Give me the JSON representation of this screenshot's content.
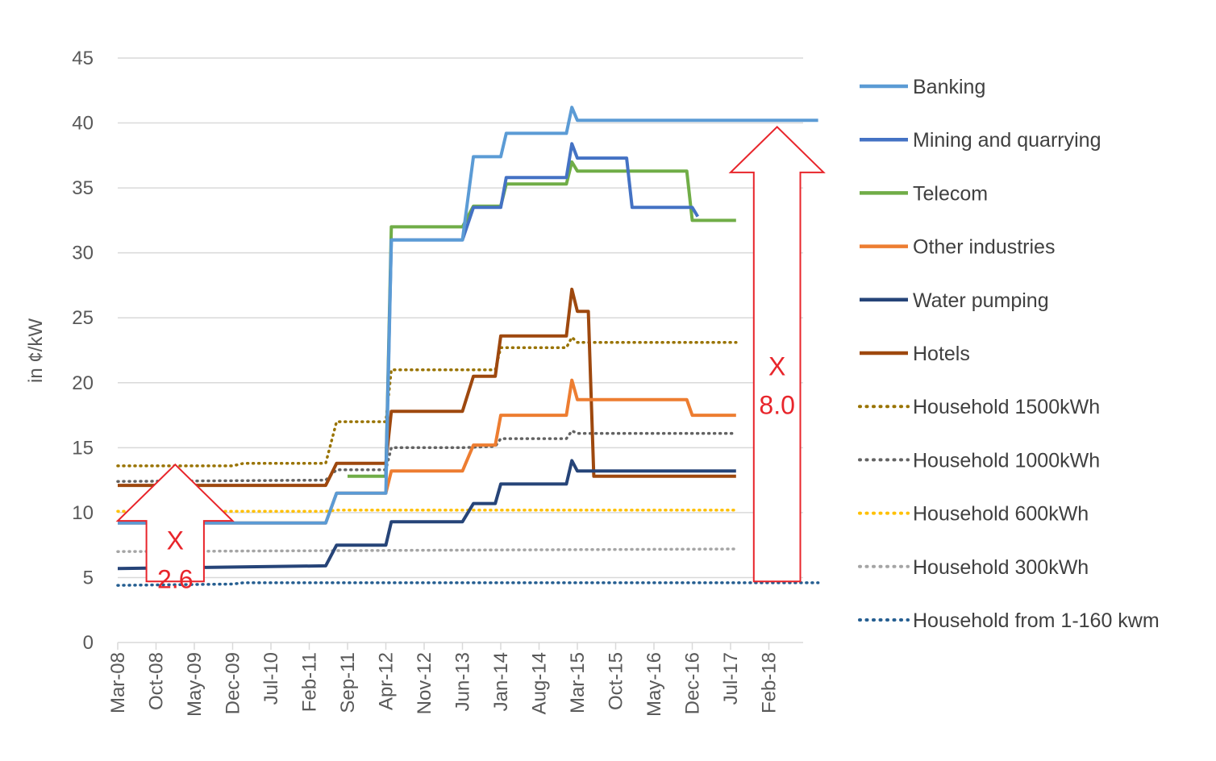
{
  "chart_data": {
    "type": "line",
    "ylabel": "in ¢/kW",
    "ylim": [
      0,
      45
    ],
    "yticks": [
      0,
      5,
      10,
      15,
      20,
      25,
      30,
      35,
      40,
      45
    ],
    "xtick_labels": [
      "Mar-08",
      "Oct-08",
      "May-09",
      "Dec-09",
      "Jul-10",
      "Feb-11",
      "Sep-11",
      "Apr-12",
      "Nov-12",
      "Jun-13",
      "Jan-14",
      "Aug-14",
      "Mar-15",
      "Oct-15",
      "May-16",
      "Dec-16",
      "Jul-17",
      "Feb-18"
    ],
    "legend_position": "right",
    "grid": "horizontal",
    "series": [
      {
        "name": "Banking",
        "color": "#5b9bd5",
        "style": "solid",
        "points": [
          [
            "Mar-08",
            9.2
          ],
          [
            "May-11",
            9.2
          ],
          [
            "Jul-11",
            11.5
          ],
          [
            "Apr-12",
            11.5
          ],
          [
            "May-12",
            31
          ],
          [
            "Jun-13",
            31
          ],
          [
            "Aug-13",
            37.4
          ],
          [
            "Jan-14",
            37.4
          ],
          [
            "Feb-14",
            39.2
          ],
          [
            "Jan-15",
            39.2
          ],
          [
            "Feb-15",
            41.2
          ],
          [
            "Mar-15",
            40.2
          ],
          [
            "Nov-18",
            40.2
          ]
        ]
      },
      {
        "name": "Mining and quarrying",
        "color": "#4472c4",
        "style": "solid",
        "points": [
          [
            "Apr-12",
            12.7
          ],
          [
            "May-12",
            31
          ],
          [
            "Jun-13",
            31
          ],
          [
            "Aug-13",
            33.5
          ],
          [
            "Jan-14",
            33.5
          ],
          [
            "Feb-14",
            35.8
          ],
          [
            "Jan-15",
            35.8
          ],
          [
            "Feb-15",
            38.4
          ],
          [
            "Mar-15",
            37.3
          ],
          [
            "Dec-15",
            37.3
          ],
          [
            "Jan-16",
            33.5
          ],
          [
            "Dec-16",
            33.5
          ],
          [
            "Jan-17",
            32.8
          ]
        ]
      },
      {
        "name": "Telecom",
        "color": "#70ad47",
        "style": "solid",
        "points": [
          [
            "Sep-11",
            12.8
          ],
          [
            "Apr-12",
            12.8
          ],
          [
            "May-12",
            32
          ],
          [
            "Jun-13",
            32
          ],
          [
            "Aug-13",
            33.6
          ],
          [
            "Jan-14",
            33.6
          ],
          [
            "Feb-14",
            35.3
          ],
          [
            "Jan-15",
            35.3
          ],
          [
            "Feb-15",
            37
          ],
          [
            "Mar-15",
            36.3
          ],
          [
            "Nov-16",
            36.3
          ],
          [
            "Dec-16",
            32.5
          ],
          [
            "Aug-17",
            32.5
          ]
        ]
      },
      {
        "name": "Other industries",
        "color": "#ed7d31",
        "style": "solid",
        "points": [
          [
            "Mar-08",
            9.2
          ],
          [
            "May-11",
            9.2
          ],
          [
            "Jul-11",
            11.5
          ],
          [
            "Apr-12",
            11.5
          ],
          [
            "May-12",
            13.2
          ],
          [
            "Jun-13",
            13.2
          ],
          [
            "Aug-13",
            15.2
          ],
          [
            "Dec-13",
            15.2
          ],
          [
            "Jan-14",
            17.5
          ],
          [
            "Jan-15",
            17.5
          ],
          [
            "Feb-15",
            20.2
          ],
          [
            "Mar-15",
            18.7
          ],
          [
            "Nov-16",
            18.7
          ],
          [
            "Dec-16",
            17.5
          ],
          [
            "Aug-17",
            17.5
          ]
        ]
      },
      {
        "name": "Water pumping",
        "color": "#264478",
        "style": "solid",
        "points": [
          [
            "Mar-08",
            5.7
          ],
          [
            "May-11",
            5.9
          ],
          [
            "Jul-11",
            7.5
          ],
          [
            "Apr-12",
            7.5
          ],
          [
            "May-12",
            9.3
          ],
          [
            "Jun-13",
            9.3
          ],
          [
            "Aug-13",
            10.7
          ],
          [
            "Dec-13",
            10.7
          ],
          [
            "Jan-14",
            12.2
          ],
          [
            "Jan-15",
            12.2
          ],
          [
            "Feb-15",
            14
          ],
          [
            "Mar-15",
            13.2
          ],
          [
            "Aug-17",
            13.2
          ]
        ]
      },
      {
        "name": "Hotels",
        "color": "#9e480e",
        "style": "solid",
        "points": [
          [
            "Mar-08",
            12.1
          ],
          [
            "May-11",
            12.1
          ],
          [
            "Jul-11",
            13.8
          ],
          [
            "Apr-12",
            13.8
          ],
          [
            "May-12",
            17.8
          ],
          [
            "Jun-13",
            17.8
          ],
          [
            "Aug-13",
            20.5
          ],
          [
            "Dec-13",
            20.5
          ],
          [
            "Jan-14",
            23.6
          ],
          [
            "Jan-15",
            23.6
          ],
          [
            "Feb-15",
            27.2
          ],
          [
            "Mar-15",
            25.5
          ],
          [
            "May-15",
            25.5
          ],
          [
            "Jun-15",
            12.8
          ],
          [
            "Aug-17",
            12.8
          ]
        ]
      },
      {
        "name": "Household 1500kWh",
        "color": "#997300",
        "style": "dotted",
        "points": [
          [
            "Mar-08",
            13.6
          ],
          [
            "Dec-09",
            13.6
          ],
          [
            "Feb-10",
            13.8
          ],
          [
            "May-11",
            13.8
          ],
          [
            "Jul-11",
            17
          ],
          [
            "Apr-12",
            17
          ],
          [
            "May-12",
            21
          ],
          [
            "Jun-13",
            21
          ],
          [
            "Aug-13",
            21
          ],
          [
            "Dec-13",
            21
          ],
          [
            "Jan-14",
            22.7
          ],
          [
            "Jan-15",
            22.7
          ],
          [
            "Feb-15",
            23.5
          ],
          [
            "Mar-15",
            23.1
          ],
          [
            "Aug-17",
            23.1
          ]
        ]
      },
      {
        "name": "Household 1000kWh",
        "color": "#636363",
        "style": "dotted",
        "points": [
          [
            "Mar-08",
            12.4
          ],
          [
            "May-11",
            12.5
          ],
          [
            "Jul-11",
            13.3
          ],
          [
            "Apr-12",
            13.3
          ],
          [
            "May-12",
            15
          ],
          [
            "Jun-13",
            15
          ],
          [
            "Dec-13",
            15.1
          ],
          [
            "Jan-14",
            15.7
          ],
          [
            "Jan-15",
            15.7
          ],
          [
            "Feb-15",
            16.3
          ],
          [
            "Mar-15",
            16.1
          ],
          [
            "Aug-17",
            16.1
          ]
        ]
      },
      {
        "name": "Household 600kWh",
        "color": "#ffc000",
        "style": "dotted",
        "points": [
          [
            "Mar-08",
            10.1
          ],
          [
            "May-11",
            10.1
          ],
          [
            "Jul-11",
            10.2
          ],
          [
            "Aug-17",
            10.2
          ]
        ]
      },
      {
        "name": "Household 300kWh",
        "color": "#a5a5a5",
        "style": "dotted",
        "points": [
          [
            "Mar-08",
            7
          ],
          [
            "Aug-17",
            7.2
          ]
        ]
      },
      {
        "name": "Household from 1-160 kwm",
        "color": "#255e91",
        "style": "dotted",
        "points": [
          [
            "Mar-08",
            4.4
          ],
          [
            "Dec-09",
            4.5
          ],
          [
            "Feb-10",
            4.6
          ],
          [
            "Nov-18",
            4.6
          ]
        ]
      }
    ],
    "annotations": [
      {
        "text_line1": "X",
        "text_line2": "2.6",
        "from_date": "Mar-08",
        "to_date": "Dec-09",
        "base_value": 4.7,
        "tip_value": 13.7,
        "color": "#e8252b"
      },
      {
        "text_line1": "X",
        "text_line2": "8.0",
        "from_date": "Jul-17",
        "to_date": "Dec-18",
        "base_value": 4.7,
        "tip_value": 39.7,
        "color": "#e8252b"
      }
    ]
  }
}
